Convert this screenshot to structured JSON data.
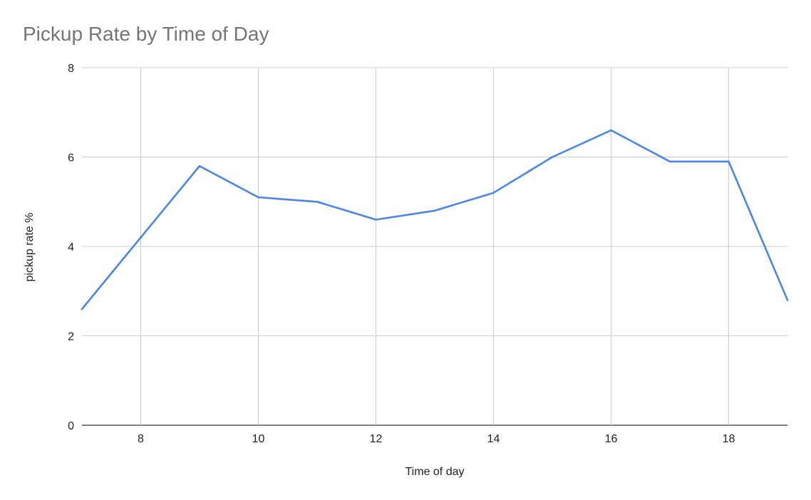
{
  "chart_data": {
    "type": "line",
    "title": "Pickup Rate by Time of Day",
    "xlabel": "Time of day",
    "ylabel": "pickup rate %",
    "xlim": [
      7,
      19
    ],
    "ylim": [
      0,
      8
    ],
    "x_ticks": [
      8,
      10,
      12,
      14,
      16,
      18
    ],
    "y_ticks": [
      0,
      2,
      4,
      6,
      8
    ],
    "grid": true,
    "series": [
      {
        "color": "#4a86e8",
        "x": [
          7,
          8,
          9,
          10,
          11,
          12,
          13,
          14,
          15,
          16,
          17,
          18,
          19
        ],
        "values": [
          2.6,
          4.2,
          5.8,
          5.1,
          5.0,
          4.6,
          4.8,
          5.2,
          6.0,
          6.6,
          5.9,
          5.9,
          2.8
        ]
      }
    ]
  }
}
